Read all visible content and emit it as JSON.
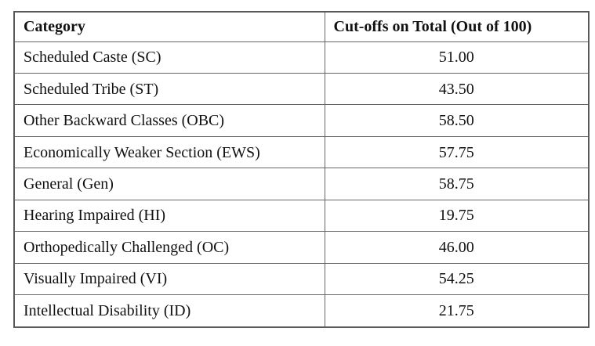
{
  "table": {
    "columns": [
      {
        "label": "Category"
      },
      {
        "label": "Cut-offs on Total (Out of 100)"
      }
    ],
    "rows": [
      {
        "category": "Scheduled Caste (SC)",
        "cutoff": "51.00"
      },
      {
        "category": "Scheduled Tribe (ST)",
        "cutoff": "43.50"
      },
      {
        "category": "Other Backward Classes (OBC)",
        "cutoff": "58.50"
      },
      {
        "category": "Economically Weaker Section (EWS)",
        "cutoff": "57.75"
      },
      {
        "category": "General (Gen)",
        "cutoff": "58.75"
      },
      {
        "category": "Hearing Impaired (HI)",
        "cutoff": "19.75"
      },
      {
        "category": "Orthopedically Challenged (OC)",
        "cutoff": "46.00"
      },
      {
        "category": "Visually Impaired (VI)",
        "cutoff": "54.25"
      },
      {
        "category": "Intellectual Disability (ID)",
        "cutoff": "21.75"
      }
    ],
    "colors": {
      "border": "#666666",
      "outer_border": "#5a5a5a",
      "text": "#111111",
      "background": "#ffffff"
    }
  },
  "chart_data": {
    "type": "table",
    "title": "",
    "columns": [
      "Category",
      "Cut-offs on Total (Out of 100)"
    ],
    "categories": [
      "Scheduled Caste (SC)",
      "Scheduled Tribe (ST)",
      "Other Backward Classes (OBC)",
      "Economically Weaker Section (EWS)",
      "General (Gen)",
      "Hearing Impaired (HI)",
      "Orthopedically Challenged (OC)",
      "Visually Impaired (VI)",
      "Intellectual Disability (ID)"
    ],
    "values": [
      51.0,
      43.5,
      58.5,
      57.75,
      58.75,
      19.75,
      46.0,
      54.25,
      21.75
    ],
    "value_max": 100
  }
}
